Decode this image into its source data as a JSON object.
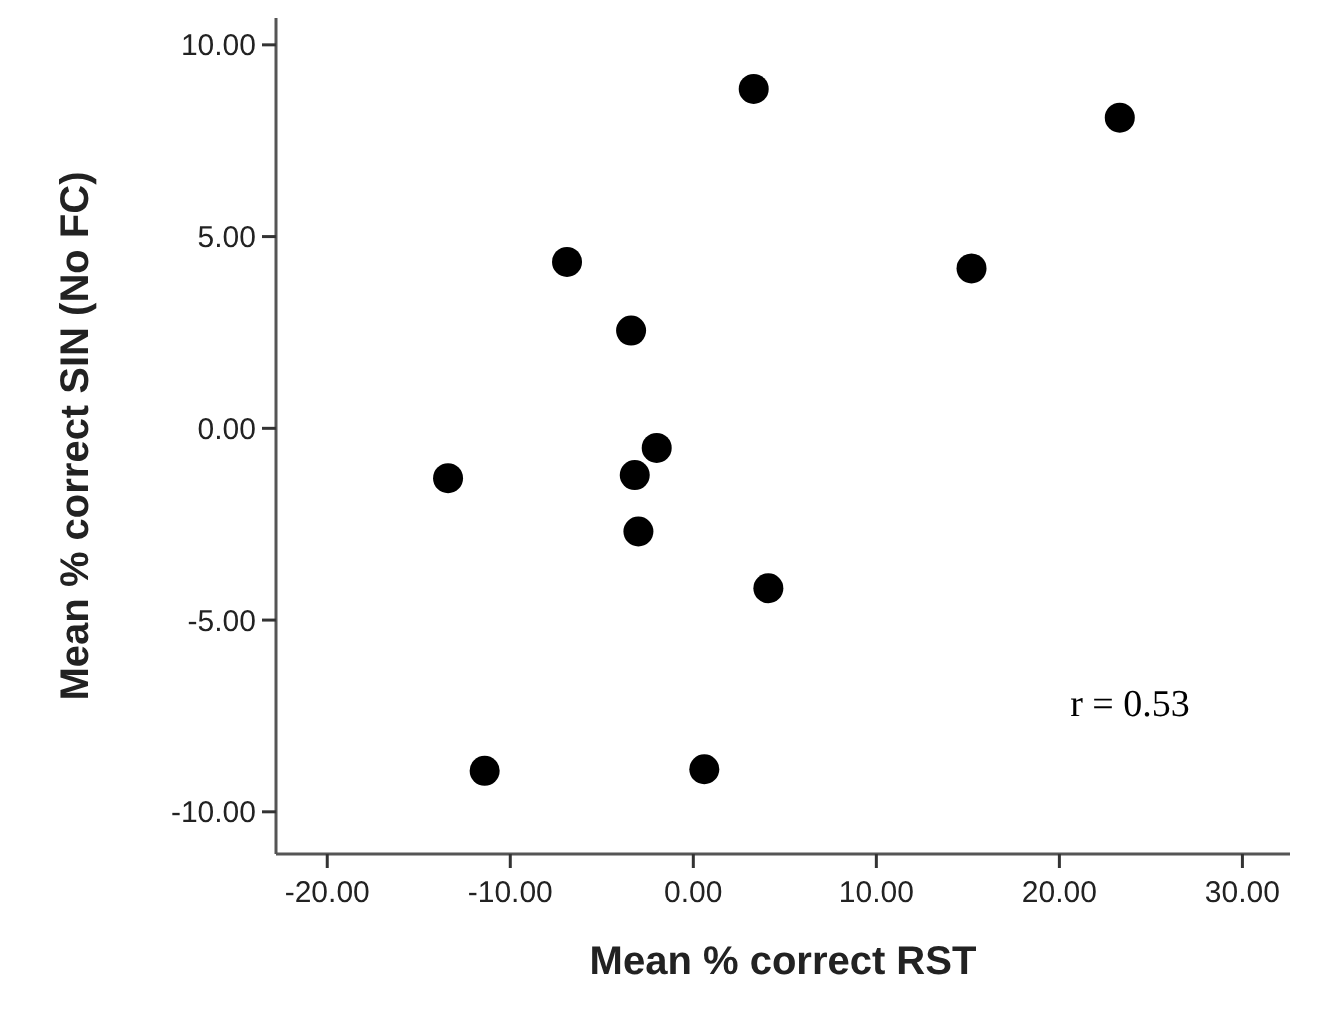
{
  "chart_data": {
    "type": "scatter",
    "xlabel": "Mean % correct RST",
    "ylabel": "Mean % correct SIN (No FC)",
    "annotations": [
      "r = 0.53"
    ],
    "x": [
      3.3,
      23.3,
      -6.9,
      15.2,
      -3.4,
      -2.0,
      -3.2,
      -13.4,
      -3.0,
      4.1,
      -11.4,
      0.6
    ],
    "values": [
      8.85,
      8.1,
      4.34,
      4.17,
      2.55,
      -0.51,
      -1.22,
      -1.3,
      -2.69,
      -4.17,
      -8.93,
      -8.89
    ],
    "color": "#000000",
    "marker": "circle",
    "xlim": [
      -22.8,
      32.6
    ],
    "ylim": [
      -11.1,
      10.7
    ],
    "xticks": [
      {
        "value": -20,
        "label": "-20.00"
      },
      {
        "value": -10,
        "label": "-10.00"
      },
      {
        "value": 0,
        "label": "0.00"
      },
      {
        "value": 10,
        "label": "10.00"
      },
      {
        "value": 20,
        "label": "20.00"
      },
      {
        "value": 30,
        "label": "30.00"
      }
    ],
    "yticks": [
      {
        "value": -10,
        "label": "-10.00"
      },
      {
        "value": -5,
        "label": "-5.00"
      },
      {
        "value": 0,
        "label": "0.00"
      },
      {
        "value": 5,
        "label": "5.00"
      },
      {
        "value": 10,
        "label": "10.00"
      }
    ]
  }
}
